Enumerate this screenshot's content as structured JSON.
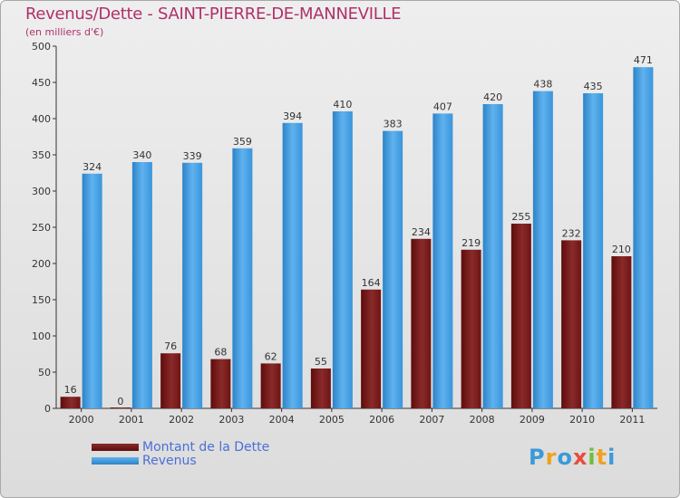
{
  "header": {
    "title": "Revenus/Dette - SAINT-PIERRE-DE-MANNEVILLE",
    "subtitle": "(en milliers d'€)"
  },
  "chart_data": {
    "type": "bar",
    "title": "Revenus/Dette - SAINT-PIERRE-DE-MANNEVILLE",
    "subtitle": "(en milliers d'€)",
    "categories": [
      "2000",
      "2001",
      "2002",
      "2003",
      "2004",
      "2005",
      "2006",
      "2007",
      "2008",
      "2009",
      "2010",
      "2011"
    ],
    "series": [
      {
        "name": "Montant de la Dette",
        "color": "#7a1a1a",
        "values": [
          16,
          0,
          76,
          68,
          62,
          55,
          164,
          234,
          219,
          255,
          232,
          210
        ]
      },
      {
        "name": "Revenus",
        "color": "#3f9be0",
        "values": [
          324,
          340,
          339,
          359,
          394,
          410,
          383,
          407,
          420,
          438,
          435,
          471
        ]
      }
    ],
    "ylim": [
      0,
      500
    ],
    "yticks": [
      0,
      50,
      100,
      150,
      200,
      250,
      300,
      350,
      400,
      450,
      500
    ],
    "grid": false,
    "legend": "bottom-left"
  },
  "logo": {
    "letters": [
      "P",
      "r",
      "o",
      "x",
      "i",
      "t",
      "i"
    ],
    "colors": [
      "#3a9ad9",
      "#f0a21e",
      "#3a9ad9",
      "#e74c3c",
      "#6fbf3a",
      "#f0a21e",
      "#3a9ad9"
    ]
  }
}
